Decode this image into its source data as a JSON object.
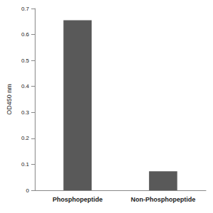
{
  "chart_data": {
    "type": "bar",
    "categories": [
      "Phosphopeptide",
      "Non-Phosphopeptide"
    ],
    "values": [
      0.655,
      0.073
    ],
    "color": "#595959",
    "y_label": "OD450 nm",
    "ylim": [
      0,
      0.7
    ],
    "yticks": [
      0,
      0.1,
      0.2,
      0.3,
      0.4,
      0.5,
      0.6,
      0.7
    ],
    "grid": false
  }
}
